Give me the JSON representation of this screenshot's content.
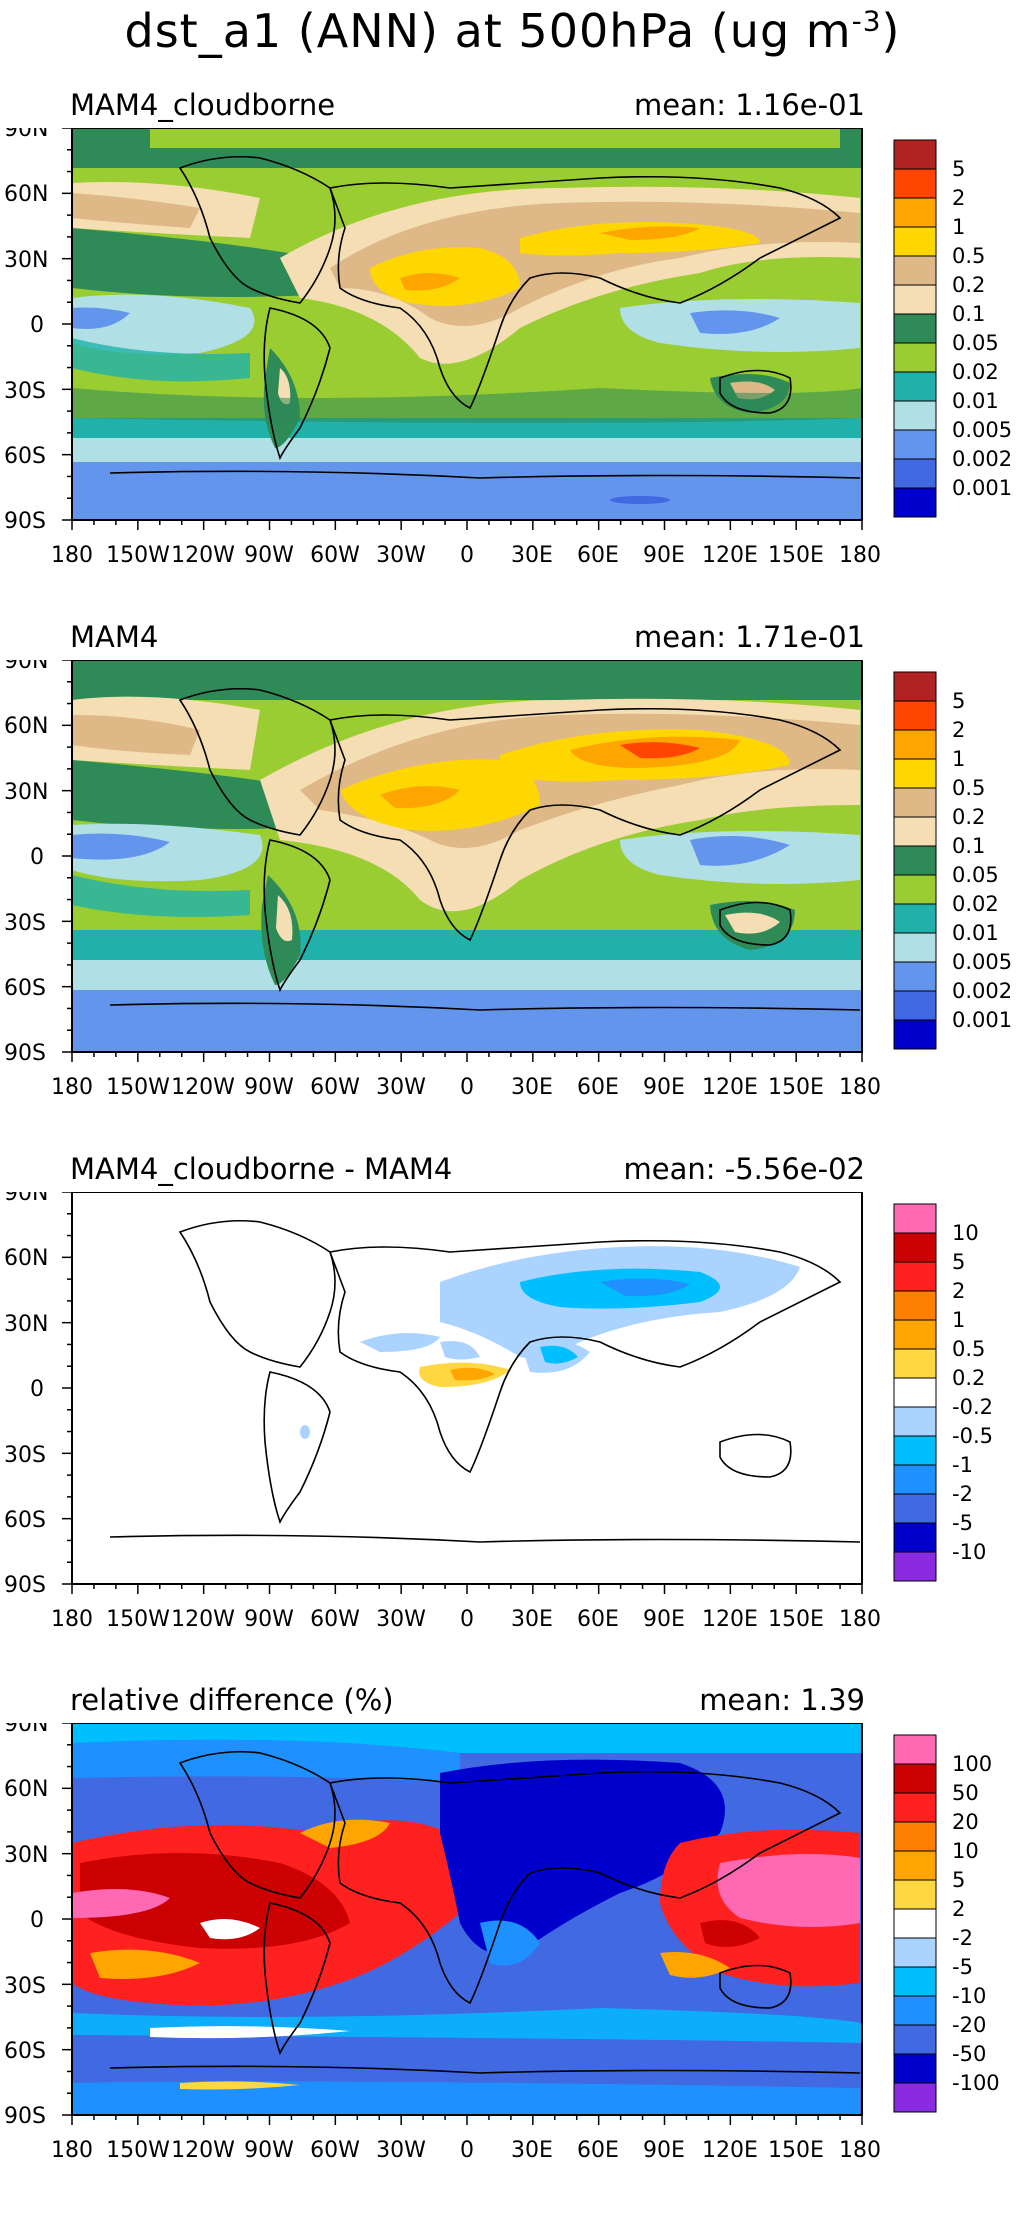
{
  "title": "dst_a1 (ANN) at 500hPa (ug m",
  "title_exp": "-3",
  "title_close": ")",
  "lat_labels": [
    "90N",
    "60N",
    "30N",
    "0",
    "30S",
    "60S",
    "90S"
  ],
  "lon_labels": [
    "180",
    "150W",
    "120W",
    "90W",
    "60W",
    "30W",
    "0",
    "30E",
    "60E",
    "90E",
    "120E",
    "150E",
    "180"
  ],
  "panels": [
    {
      "name": "MAM4_cloudborne",
      "mean": "mean:  1.16e-01",
      "colorbar": {
        "colors": [
          "#b22222",
          "#ff4500",
          "#ffa500",
          "#ffd700",
          "#deb887",
          "#f5deb3",
          "#2e8b57",
          "#9acd32",
          "#20b2aa",
          "#b0e0e6",
          "#6495ed",
          "#4169e1",
          "#0000cd"
        ],
        "labels": [
          "5",
          "2",
          "1",
          "0.5",
          "0.2",
          "0.1",
          "0.05",
          "0.02",
          "0.01",
          "0.005",
          "0.002",
          "0.001"
        ]
      }
    },
    {
      "name": "MAM4",
      "mean": "mean:  1.71e-01",
      "colorbar": {
        "colors": [
          "#b22222",
          "#ff4500",
          "#ffa500",
          "#ffd700",
          "#deb887",
          "#f5deb3",
          "#2e8b57",
          "#9acd32",
          "#20b2aa",
          "#b0e0e6",
          "#6495ed",
          "#4169e1",
          "#0000cd"
        ],
        "labels": [
          "5",
          "2",
          "1",
          "0.5",
          "0.2",
          "0.1",
          "0.05",
          "0.02",
          "0.01",
          "0.005",
          "0.002",
          "0.001"
        ]
      }
    },
    {
      "name": "MAM4_cloudborne - MAM4",
      "mean": "mean:  -5.56e-02",
      "colorbar": {
        "colors": [
          "#ff69b4",
          "#cc0000",
          "#ff2020",
          "#ff7f00",
          "#ffa500",
          "#ffd740",
          "#ffffff",
          "#aad4ff",
          "#00bfff",
          "#1e90ff",
          "#4169e1",
          "#0000cd",
          "#8a2be2"
        ],
        "labels": [
          "10",
          "5",
          "2",
          "1",
          "0.5",
          "0.2",
          "-0.2",
          "-0.5",
          "-1",
          "-2",
          "-5",
          "-10"
        ]
      }
    },
    {
      "name": "relative difference (%)",
      "mean": "mean:   1.39",
      "colorbar": {
        "colors": [
          "#ff69b4",
          "#cc0000",
          "#ff2020",
          "#ff7f00",
          "#ffa500",
          "#ffd740",
          "#ffffff",
          "#aad4ff",
          "#00bfff",
          "#1e90ff",
          "#4169e1",
          "#0000cd",
          "#8a2be2"
        ],
        "labels": [
          "100",
          "50",
          "20",
          "10",
          "5",
          "2",
          "-2",
          "-5",
          "-10",
          "-20",
          "-50",
          "-100"
        ]
      }
    }
  ]
}
